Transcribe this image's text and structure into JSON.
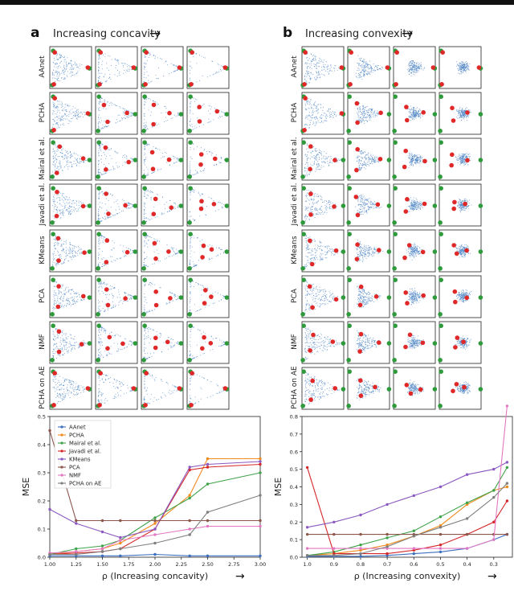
{
  "panels": {
    "a": {
      "letter": "a",
      "heading": "Increasing concavity",
      "arrow": "→"
    },
    "b": {
      "letter": "b",
      "heading": "Increasing convexity",
      "arrow": "→"
    }
  },
  "methods": [
    "AAnet",
    "PCHA",
    "Mairal et al.",
    "Javadi et al.",
    "KMeans",
    "PCA",
    "NMF",
    "PCHA on AE"
  ],
  "colors": {
    "scatter": "#4f86c6",
    "archetype_true": "#2e9a3c",
    "archetype_pred": "#e02828",
    "AAnet": "#3b6fc0",
    "PCHA": "#f08c1e",
    "Mairal et al.": "#3fa34a",
    "Javadi et al.": "#d62728",
    "KMeans": "#8a58c0",
    "PCA": "#8c564b",
    "NMF": "#e377c2",
    "PCHA on AE": "#7f7f7f"
  },
  "chart_data": [
    {
      "type": "line",
      "panel": "a",
      "xlabel": "ρ (Increasing concavity)",
      "ylabel": "MSE",
      "x": [
        1.0,
        1.25,
        1.5,
        1.67,
        2.0,
        2.33,
        2.5,
        3.0
      ],
      "xticks": [
        "1.00",
        "1.25",
        "1.50",
        "1.75",
        "2.00",
        "2.25",
        "2.50",
        "2.75",
        "3.00"
      ],
      "xlim": [
        1.0,
        3.0
      ],
      "ylim": [
        0,
        0.5
      ],
      "yticks": [
        "0.0",
        "0.1",
        "0.2",
        "0.3",
        "0.4",
        "0.5"
      ],
      "legend": "top-left",
      "series": [
        {
          "name": "AAnet",
          "values": [
            0.005,
            0.005,
            0.005,
            0.005,
            0.01,
            0.005,
            0.005,
            0.005
          ]
        },
        {
          "name": "PCHA",
          "values": [
            0.01,
            0.02,
            0.03,
            0.05,
            0.12,
            0.22,
            0.35,
            0.35
          ]
        },
        {
          "name": "Mairal et al.",
          "values": [
            0.01,
            0.03,
            0.04,
            0.06,
            0.14,
            0.21,
            0.26,
            0.3
          ]
        },
        {
          "name": "Javadi et al.",
          "values": [
            0.01,
            0.015,
            0.02,
            0.03,
            0.1,
            0.31,
            0.32,
            0.33
          ]
        },
        {
          "name": "KMeans",
          "values": [
            0.17,
            0.12,
            0.09,
            0.07,
            0.1,
            0.32,
            0.33,
            0.34
          ]
        },
        {
          "name": "PCA",
          "values": [
            0.45,
            0.13,
            0.13,
            0.13,
            0.13,
            0.13,
            0.13,
            0.13
          ]
        },
        {
          "name": "NMF",
          "values": [
            0.015,
            0.02,
            0.03,
            0.06,
            0.08,
            0.1,
            0.11,
            0.11
          ]
        },
        {
          "name": "PCHA on AE",
          "values": [
            0.01,
            0.01,
            0.02,
            0.03,
            0.05,
            0.08,
            0.16,
            0.22
          ]
        }
      ]
    },
    {
      "type": "line",
      "panel": "b",
      "xlabel": "ρ (Increasing convexity)",
      "ylabel": "MSE",
      "x": [
        1.0,
        0.9,
        0.8,
        0.7,
        0.6,
        0.5,
        0.4,
        0.3,
        0.25
      ],
      "xticks": [
        "1.0",
        "0.9",
        "0.8",
        "0.7",
        "0.6",
        "0.5",
        "0.4",
        "0.3"
      ],
      "xlim": [
        1.02,
        0.23
      ],
      "ylim": [
        0,
        0.8
      ],
      "yticks": [
        "0.0",
        "0.1",
        "0.2",
        "0.3",
        "0.4",
        "0.5",
        "0.6",
        "0.7",
        "0.8"
      ],
      "series": [
        {
          "name": "AAnet",
          "values": [
            0.005,
            0.005,
            0.005,
            0.01,
            0.02,
            0.03,
            0.05,
            0.1,
            0.13
          ]
        },
        {
          "name": "PCHA",
          "values": [
            0.01,
            0.02,
            0.04,
            0.07,
            0.12,
            0.18,
            0.3,
            0.38,
            0.4
          ]
        },
        {
          "name": "Mairal et al.",
          "values": [
            0.01,
            0.03,
            0.07,
            0.11,
            0.15,
            0.23,
            0.31,
            0.38,
            0.51
          ]
        },
        {
          "name": "Javadi et al.",
          "values": [
            0.51,
            0.02,
            0.02,
            0.02,
            0.04,
            0.07,
            0.13,
            0.2,
            0.32
          ]
        },
        {
          "name": "KMeans",
          "values": [
            0.17,
            0.2,
            0.24,
            0.3,
            0.35,
            0.4,
            0.47,
            0.5,
            0.54
          ]
        },
        {
          "name": "PCA",
          "values": [
            0.13,
            0.13,
            0.13,
            0.13,
            0.13,
            0.13,
            0.13,
            0.13,
            0.13
          ]
        },
        {
          "name": "NMF",
          "values": [
            0.05,
            0.05,
            0.05,
            0.05,
            0.05,
            0.05,
            0.05,
            0.1,
            0.86
          ]
        },
        {
          "name": "PCHA on AE",
          "values": [
            0.01,
            0.01,
            0.02,
            0.06,
            0.12,
            0.17,
            0.22,
            0.34,
            0.42
          ]
        }
      ]
    }
  ]
}
